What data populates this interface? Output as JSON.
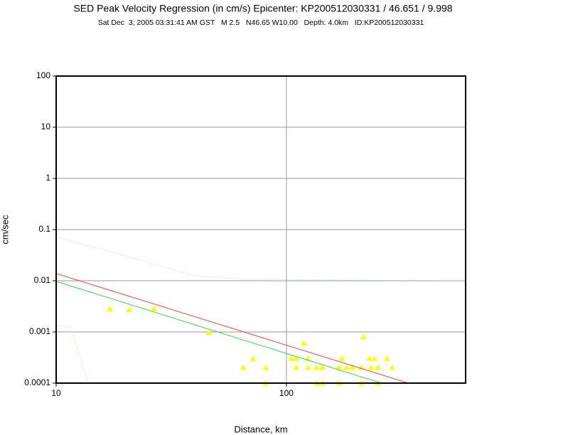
{
  "chart_data": {
    "type": "scatter",
    "title": "SED Peak Velocity Regression (in cm/s) Epicenter: KP200512030331 / 46.651 / 9.998",
    "subtitle": "Sat Dec  3, 2005 03:31:41 AM GST   M 2.5   N46.65 W10.00   Depth: 4.0km   ID:KP200512030331",
    "x_label": "Distance, km",
    "y_label": "cm/sec",
    "xscale": "log",
    "yscale": "log",
    "xlim": [
      10,
      600
    ],
    "ylim": [
      0.0001,
      100
    ],
    "xticks": [
      10,
      100
    ],
    "yticks": [
      100,
      10,
      1,
      0.1,
      0.01,
      0.001,
      0.0001
    ],
    "grid": true,
    "series": [
      {
        "color": "#ffff00",
        "marker": "triangle",
        "x": [
          17.1,
          20.7,
          26.6,
          46,
          64.7,
          71.5,
          81.2,
          81.2,
          105,
          110,
          110,
          119,
          124,
          124,
          135,
          143,
          135,
          143,
          174,
          169,
          182,
          193,
          169,
          216,
          211,
          229,
          240,
          233,
          249,
          273,
          287,
          211,
          249
        ],
        "values": [
          0.0028,
          0.0027,
          0.0028,
          0.00095,
          0.0002,
          0.0003,
          0.0002,
          0.0001,
          0.0003,
          0.0003,
          0.0002,
          0.0006,
          0.0003,
          0.0002,
          0.0002,
          0.0002,
          0.0001,
          0.0001,
          0.0003,
          0.0002,
          0.0002,
          0.0002,
          0.0001,
          0.0008,
          0.0002,
          0.0003,
          0.0003,
          0.0002,
          0.0002,
          0.0003,
          0.0002,
          0.0001,
          0.0001
        ]
      },
      {
        "color": "#ff4040",
        "line": "solid",
        "x": [
          10,
          338
        ],
        "values": [
          0.0138,
          0.0001
        ]
      },
      {
        "color": "#40d040",
        "line": "solid",
        "x": [
          10,
          258
        ],
        "values": [
          0.0097,
          0.0001
        ]
      },
      {
        "color": "#a8e8a8",
        "line": "dotted",
        "x": [
          10,
          20,
          30,
          40,
          60,
          100,
          600
        ],
        "values": [
          0.07,
          0.031,
          0.018,
          0.0126,
          0.011,
          0.0105,
          0.01
        ]
      },
      {
        "color": "#a8e8a8",
        "line": "dotted",
        "x": [
          10,
          11.6,
          12,
          13.8
        ],
        "values": [
          0.0014,
          0.0012,
          0.0007,
          0.0001
        ]
      }
    ]
  }
}
